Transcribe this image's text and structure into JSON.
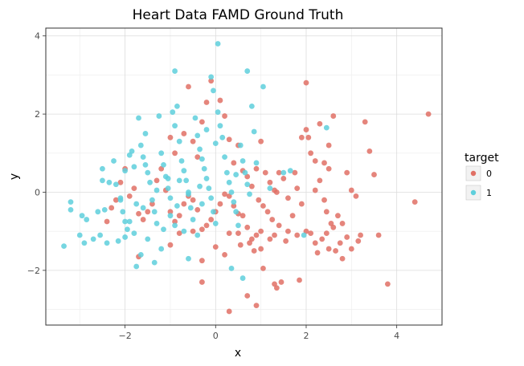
{
  "chart_data": {
    "type": "scatter",
    "title": "Heart Data FAMD Ground Truth",
    "xlabel": "x",
    "ylabel": "y",
    "xlim": [
      -3.75,
      5.0
    ],
    "ylim": [
      -3.4,
      4.2
    ],
    "x_ticks": [
      -2,
      0,
      2,
      4
    ],
    "y_ticks": [
      -2,
      0,
      2,
      4
    ],
    "grid": true,
    "legend": {
      "title": "target",
      "placement": "right"
    },
    "series": [
      {
        "name": "0",
        "color": "#E07065",
        "points": [
          [
            -1.0,
            1.4
          ],
          [
            -0.9,
            1.0
          ],
          [
            -0.7,
            1.5
          ],
          [
            -0.6,
            2.7
          ],
          [
            -0.5,
            1.3
          ],
          [
            -0.4,
            0.9
          ],
          [
            -0.3,
            1.8
          ],
          [
            -0.2,
            2.3
          ],
          [
            -0.1,
            2.85
          ],
          [
            0.1,
            2.35
          ],
          [
            0.2,
            1.95
          ],
          [
            0.3,
            1.35
          ],
          [
            0.4,
            0.75
          ],
          [
            0.5,
            1.2
          ],
          [
            0.6,
            0.55
          ],
          [
            0.7,
            0.4
          ],
          [
            0.8,
            0.15
          ],
          [
            0.9,
            0.6
          ],
          [
            1.0,
            1.3
          ],
          [
            1.1,
            0.5
          ],
          [
            1.2,
            0.25
          ],
          [
            1.3,
            0.05
          ],
          [
            1.35,
            0.0
          ],
          [
            1.4,
            0.5
          ],
          [
            1.5,
            0.35
          ],
          [
            1.6,
            -0.15
          ],
          [
            1.7,
            -0.6
          ],
          [
            1.75,
            0.5
          ],
          [
            1.8,
            0.1
          ],
          [
            1.9,
            -0.3
          ],
          [
            2.0,
            1.6
          ],
          [
            2.05,
            1.4
          ],
          [
            2.1,
            1.0
          ],
          [
            2.2,
            0.8
          ],
          [
            2.3,
            0.3
          ],
          [
            2.4,
            -0.2
          ],
          [
            2.45,
            -0.5
          ],
          [
            2.5,
            0.6
          ],
          [
            2.55,
            -0.8
          ],
          [
            2.6,
            -0.9
          ],
          [
            2.7,
            -0.6
          ],
          [
            2.8,
            -0.8
          ],
          [
            2.9,
            0.5
          ],
          [
            3.0,
            0.05
          ],
          [
            3.1,
            -0.1
          ],
          [
            3.2,
            -1.1
          ],
          [
            3.3,
            1.8
          ],
          [
            3.4,
            1.05
          ],
          [
            3.5,
            0.45
          ],
          [
            3.6,
            -1.1
          ],
          [
            4.4,
            -0.25
          ],
          [
            4.7,
            2.0
          ],
          [
            3.8,
            -2.35
          ],
          [
            2.0,
            2.8
          ],
          [
            1.9,
            1.4
          ],
          [
            2.3,
            1.75
          ],
          [
            2.5,
            1.2
          ],
          [
            2.6,
            1.95
          ],
          [
            2.4,
            0.75
          ],
          [
            2.2,
            0.05
          ],
          [
            1.6,
            -1.0
          ],
          [
            1.8,
            -1.1
          ],
          [
            2.0,
            -1.0
          ],
          [
            2.2,
            -1.3
          ],
          [
            2.35,
            -1.2
          ],
          [
            2.45,
            -1.05
          ],
          [
            2.25,
            -1.55
          ],
          [
            2.5,
            -1.45
          ],
          [
            2.65,
            -1.5
          ],
          [
            2.8,
            -1.7
          ],
          [
            3.0,
            -1.45
          ],
          [
            3.15,
            -1.25
          ],
          [
            2.9,
            -1.15
          ],
          [
            2.75,
            -1.3
          ],
          [
            1.2,
            -1.2
          ],
          [
            1.3,
            -1.1
          ],
          [
            1.0,
            -1.0
          ],
          [
            0.9,
            -1.1
          ],
          [
            0.8,
            -1.2
          ],
          [
            0.7,
            -0.9
          ],
          [
            0.6,
            -0.6
          ],
          [
            0.5,
            -0.55
          ],
          [
            0.4,
            -0.35
          ],
          [
            0.3,
            -0.1
          ],
          [
            0.2,
            -0.05
          ],
          [
            0.1,
            -0.3
          ],
          [
            0.0,
            -0.5
          ],
          [
            -0.1,
            -0.7
          ],
          [
            -0.2,
            -0.85
          ],
          [
            -0.3,
            -0.95
          ],
          [
            -0.4,
            -0.45
          ],
          [
            -0.5,
            -0.2
          ],
          [
            -0.6,
            -0.1
          ],
          [
            -0.7,
            -0.3
          ],
          [
            -0.8,
            -0.6
          ],
          [
            -0.9,
            -0.75
          ],
          [
            -1.0,
            -0.5
          ],
          [
            -1.1,
            0.05
          ],
          [
            -1.2,
            0.6
          ],
          [
            -1.3,
            0.3
          ],
          [
            -1.4,
            -0.3
          ],
          [
            -1.5,
            -0.5
          ],
          [
            -1.6,
            -0.7
          ],
          [
            -1.7,
            -0.55
          ],
          [
            -1.8,
            0.1
          ],
          [
            -1.9,
            -0.1
          ],
          [
            -2.0,
            0.6
          ],
          [
            -2.1,
            0.25
          ],
          [
            -2.2,
            -0.2
          ],
          [
            -2.3,
            -0.4
          ],
          [
            -2.4,
            -0.75
          ],
          [
            -1.7,
            -1.65
          ],
          [
            -1.0,
            -1.35
          ],
          [
            -0.8,
            -1.05
          ],
          [
            -0.5,
            -1.0
          ],
          [
            -0.3,
            -1.75
          ],
          [
            -0.3,
            -2.3
          ],
          [
            0.0,
            -1.4
          ],
          [
            0.2,
            -1.6
          ],
          [
            0.3,
            -1.05
          ],
          [
            0.5,
            -1.05
          ],
          [
            0.55,
            -1.35
          ],
          [
            0.75,
            -1.3
          ],
          [
            0.85,
            -1.5
          ],
          [
            1.0,
            -1.45
          ],
          [
            1.05,
            -1.95
          ],
          [
            0.9,
            -2.9
          ],
          [
            0.7,
            -2.65
          ],
          [
            0.3,
            -3.05
          ],
          [
            1.3,
            -2.35
          ],
          [
            1.35,
            -2.45
          ],
          [
            1.45,
            -2.3
          ],
          [
            1.85,
            -2.25
          ],
          [
            2.1,
            -1.05
          ],
          [
            1.55,
            -1.25
          ],
          [
            1.4,
            -0.85
          ],
          [
            1.25,
            -0.7
          ],
          [
            1.15,
            -0.5
          ],
          [
            1.05,
            -0.35
          ],
          [
            0.95,
            -0.2
          ]
        ]
      },
      {
        "name": "1",
        "color": "#5ECFDC",
        "points": [
          [
            -3.35,
            -1.38
          ],
          [
            -3.2,
            -0.25
          ],
          [
            -3.2,
            -0.45
          ],
          [
            -3.0,
            -1.1
          ],
          [
            -2.95,
            -0.6
          ],
          [
            -2.9,
            -1.3
          ],
          [
            -2.85,
            -0.7
          ],
          [
            -2.7,
            -1.2
          ],
          [
            -2.55,
            -1.1
          ],
          [
            -2.5,
            0.6
          ],
          [
            -2.45,
            -0.45
          ],
          [
            -2.4,
            -1.3
          ],
          [
            -2.35,
            0.25
          ],
          [
            -2.25,
            0.8
          ],
          [
            -2.2,
            0.2
          ],
          [
            -2.15,
            -1.25
          ],
          [
            -2.1,
            -0.15
          ],
          [
            -2.05,
            -0.5
          ],
          [
            -2.0,
            -1.15
          ],
          [
            -2.0,
            0.55
          ],
          [
            -1.95,
            -0.95
          ],
          [
            -1.9,
            -0.75
          ],
          [
            -1.85,
            1.05
          ],
          [
            -1.8,
            0.65
          ],
          [
            -1.75,
            -0.3
          ],
          [
            -1.7,
            1.9
          ],
          [
            -1.65,
            1.2
          ],
          [
            -1.6,
            0.9
          ],
          [
            -1.55,
            1.5
          ],
          [
            -1.5,
            0.5
          ],
          [
            -1.45,
            0.25
          ],
          [
            -1.4,
            -0.2
          ],
          [
            -1.35,
            -0.5
          ],
          [
            -1.3,
            -0.8
          ],
          [
            -1.25,
            1.95
          ],
          [
            -1.2,
            1.0
          ],
          [
            -1.15,
            0.7
          ],
          [
            -1.1,
            0.4
          ],
          [
            -1.05,
            0.1
          ],
          [
            -1.0,
            -0.15
          ],
          [
            -0.95,
            2.05
          ],
          [
            -0.9,
            1.7
          ],
          [
            -0.85,
            2.2
          ],
          [
            -0.8,
            1.3
          ],
          [
            -0.75,
            0.8
          ],
          [
            -0.7,
            0.55
          ],
          [
            -0.65,
            0.3
          ],
          [
            -0.6,
            -0.05
          ],
          [
            -0.55,
            -0.4
          ],
          [
            -0.5,
            -0.7
          ],
          [
            -0.45,
            1.9
          ],
          [
            -0.4,
            1.45
          ],
          [
            -0.35,
            1.1
          ],
          [
            -0.3,
            0.85
          ],
          [
            -0.25,
            0.6
          ],
          [
            -0.2,
            0.35
          ],
          [
            -0.15,
            0.1
          ],
          [
            -0.1,
            -0.15
          ],
          [
            -0.05,
            -0.5
          ],
          [
            0.0,
            -0.8
          ],
          [
            0.05,
            2.05
          ],
          [
            0.1,
            1.7
          ],
          [
            0.15,
            1.4
          ],
          [
            0.2,
            0.9
          ],
          [
            0.25,
            0.5
          ],
          [
            0.3,
            0.25
          ],
          [
            0.35,
            0.0
          ],
          [
            0.4,
            -0.25
          ],
          [
            0.45,
            -0.5
          ],
          [
            0.5,
            -0.85
          ],
          [
            0.55,
            1.2
          ],
          [
            0.6,
            0.8
          ],
          [
            0.65,
            0.5
          ],
          [
            0.7,
            0.2
          ],
          [
            0.75,
            -0.05
          ],
          [
            0.8,
            2.2
          ],
          [
            0.85,
            1.55
          ],
          [
            0.9,
            0.75
          ],
          [
            0.05,
            3.8
          ],
          [
            0.7,
            3.1
          ],
          [
            -0.9,
            3.1
          ],
          [
            -0.1,
            2.95
          ],
          [
            1.05,
            2.7
          ],
          [
            -0.05,
            2.6
          ],
          [
            -2.1,
            -0.2
          ],
          [
            -1.8,
            -1.05
          ],
          [
            -1.65,
            -1.6
          ],
          [
            -1.5,
            -1.2
          ],
          [
            -1.35,
            -1.8
          ],
          [
            -1.75,
            -1.9
          ],
          [
            -1.2,
            -1.45
          ],
          [
            -0.9,
            -0.85
          ],
          [
            -0.7,
            -1.0
          ],
          [
            -0.6,
            -1.7
          ],
          [
            -0.4,
            -1.1
          ],
          [
            -0.3,
            -0.3
          ],
          [
            -0.6,
            0.0
          ],
          [
            -0.8,
            0.3
          ],
          [
            -1.0,
            -0.6
          ],
          [
            -1.15,
            -0.95
          ],
          [
            0.35,
            -1.95
          ],
          [
            0.6,
            -2.2
          ],
          [
            1.2,
            0.1
          ],
          [
            1.5,
            0.5
          ],
          [
            1.65,
            0.55
          ],
          [
            1.95,
            -1.1
          ],
          [
            2.45,
            1.65
          ],
          [
            -2.5,
            0.3
          ],
          [
            -2.6,
            -0.5
          ],
          [
            -2.0,
            -0.75
          ],
          [
            -1.6,
            -0.4
          ],
          [
            -1.3,
            0.05
          ],
          [
            -1.05,
            0.35
          ],
          [
            -0.85,
            -0.35
          ],
          [
            -0.2,
            1.6
          ],
          [
            0.0,
            1.25
          ],
          [
            0.45,
            0.45
          ],
          [
            -0.35,
            0.15
          ],
          [
            -1.55,
            0.7
          ],
          [
            -1.9,
            0.95
          ]
        ]
      }
    ]
  }
}
